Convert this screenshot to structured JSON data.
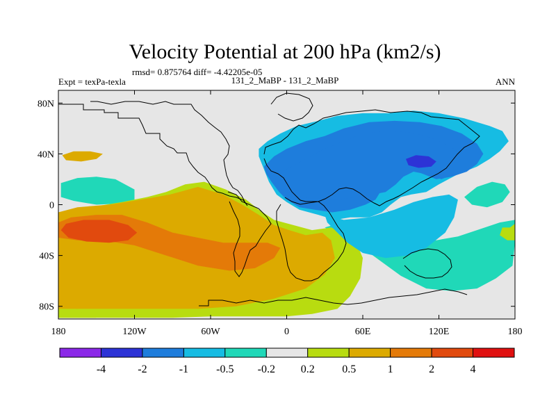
{
  "chart_data": {
    "type": "heatmap",
    "title": "Velocity Potential at 200 hPa (km2/s)",
    "stats_line": "rmsd= 0.875764  diff= -4.42205e-05",
    "left_label": "Expt = texPa-texla",
    "center_label": "131_2_MaBP - 131_2_MaBP",
    "right_label": "ANN",
    "x_axis": {
      "range": [
        -180,
        180
      ],
      "tick_values": [
        -180,
        -120,
        -60,
        0,
        60,
        120,
        180
      ],
      "tick_labels": [
        "180",
        "120W",
        "60W",
        "0",
        "60E",
        "120E",
        "180"
      ]
    },
    "y_axis": {
      "range": [
        -90,
        90
      ],
      "tick_values": [
        80,
        40,
        0,
        -40,
        -80
      ],
      "tick_labels": [
        "80N",
        "40N",
        "0",
        "40S",
        "80S"
      ]
    },
    "colorbar": {
      "labels": [
        "-4",
        "-2",
        "-1",
        "-0.5",
        "-0.2",
        "0.2",
        "0.5",
        "1",
        "2",
        "4"
      ],
      "colors": [
        "#8b28e8",
        "#2d33d6",
        "#1e7ddc",
        "#16bce3",
        "#20d8b8",
        "#e6e6e6",
        "#b8dc10",
        "#dcaa00",
        "#e47a08",
        "#e14a0e",
        "#e01010"
      ]
    },
    "background_color": "#e6e6e6",
    "features": [
      {
        "level": 5,
        "points": [
          [
            -178,
            84
          ],
          [
            -160,
            80
          ],
          [
            -130,
            81
          ],
          [
            -100,
            82
          ],
          [
            -70,
            84
          ],
          [
            -40,
            85
          ],
          [
            -10,
            86
          ],
          [
            20,
            86
          ],
          [
            60,
            87
          ],
          [
            100,
            87
          ],
          [
            140,
            86
          ],
          [
            178,
            86
          ],
          [
            180,
            75
          ],
          [
            168,
            70
          ],
          [
            150,
            70
          ],
          [
            130,
            74
          ],
          [
            110,
            78
          ],
          [
            90,
            79
          ],
          [
            60,
            76
          ],
          [
            40,
            76
          ],
          [
            30,
            73
          ],
          [
            20,
            66
          ],
          [
            10,
            58
          ],
          [
            2,
            52
          ],
          [
            -5,
            48
          ],
          [
            -15,
            44
          ],
          [
            -22,
            40
          ],
          [
            -30,
            42
          ],
          [
            -40,
            48
          ],
          [
            -55,
            58
          ],
          [
            -70,
            66
          ],
          [
            -90,
            70
          ],
          [
            -110,
            72
          ],
          [
            -130,
            74
          ],
          [
            -150,
            74
          ],
          [
            -170,
            76
          ],
          [
            -178,
            78
          ]
        ]
      },
      {
        "level": 7,
        "points": [
          [
            -177,
            39
          ],
          [
            -168,
            42
          ],
          [
            -155,
            42
          ],
          [
            -145,
            40
          ],
          [
            -150,
            36
          ],
          [
            -162,
            34
          ],
          [
            -174,
            35
          ]
        ]
      },
      {
        "level": 4,
        "points": [
          [
            -178,
            17
          ],
          [
            -165,
            21
          ],
          [
            -150,
            22
          ],
          [
            -135,
            20
          ],
          [
            -120,
            12
          ],
          [
            -120,
            4
          ],
          [
            -130,
            1
          ],
          [
            -150,
            0
          ],
          [
            -168,
            3
          ],
          [
            -178,
            6
          ]
        ]
      },
      {
        "level": 4,
        "points": [
          [
            30,
            -18
          ],
          [
            50,
            -28
          ],
          [
            68,
            -40
          ],
          [
            90,
            -56
          ],
          [
            110,
            -66
          ],
          [
            130,
            -68
          ],
          [
            150,
            -66
          ],
          [
            165,
            -58
          ],
          [
            178,
            -48
          ],
          [
            180,
            -30
          ],
          [
            180,
            -12
          ],
          [
            168,
            -14
          ],
          [
            150,
            -20
          ],
          [
            135,
            -25
          ],
          [
            118,
            -28
          ],
          [
            100,
            -26
          ],
          [
            80,
            -24
          ],
          [
            60,
            -20
          ],
          [
            40,
            -15
          ]
        ]
      },
      {
        "level": 6,
        "points": [
          [
            170,
            -18
          ],
          [
            176,
            -18
          ],
          [
            180,
            -15
          ],
          [
            180,
            -28
          ],
          [
            174,
            -28
          ],
          [
            168,
            -24
          ]
        ]
      },
      {
        "level": 6,
        "points": [
          [
            -180,
            -6
          ],
          [
            -155,
            -2
          ],
          [
            -130,
            2
          ],
          [
            -110,
            6
          ],
          [
            -95,
            10
          ],
          [
            -80,
            16
          ],
          [
            -65,
            18
          ],
          [
            -48,
            12
          ],
          [
            -32,
            4
          ],
          [
            -22,
            -4
          ],
          [
            -10,
            -12
          ],
          [
            5,
            -16
          ],
          [
            20,
            -20
          ],
          [
            35,
            -18
          ],
          [
            45,
            -22
          ],
          [
            55,
            -30
          ],
          [
            60,
            -42
          ],
          [
            58,
            -58
          ],
          [
            50,
            -72
          ],
          [
            40,
            -82
          ],
          [
            20,
            -86
          ],
          [
            0,
            -88
          ],
          [
            -30,
            -88
          ],
          [
            -60,
            -88
          ],
          [
            -90,
            -89
          ],
          [
            -120,
            -89
          ],
          [
            -150,
            -89
          ],
          [
            -180,
            -89
          ]
        ]
      },
      {
        "level": 6,
        "points": [
          [
            -180,
            -70
          ],
          [
            -170,
            -78
          ],
          [
            -160,
            -86
          ],
          [
            -150,
            -89
          ],
          [
            -180,
            -89
          ]
        ]
      },
      {
        "level": 7,
        "points": [
          [
            -180,
            -6
          ],
          [
            -165,
            -2
          ],
          [
            -140,
            0
          ],
          [
            -115,
            4
          ],
          [
            -92,
            8
          ],
          [
            -70,
            14
          ],
          [
            -50,
            8
          ],
          [
            -35,
            0
          ],
          [
            -22,
            -8
          ],
          [
            -10,
            -16
          ],
          [
            2,
            -20
          ],
          [
            15,
            -24
          ],
          [
            28,
            -22
          ],
          [
            35,
            -28
          ],
          [
            38,
            -42
          ],
          [
            30,
            -55
          ],
          [
            15,
            -66
          ],
          [
            -10,
            -74
          ],
          [
            -40,
            -80
          ],
          [
            -70,
            -82
          ],
          [
            -100,
            -82
          ],
          [
            -130,
            -82
          ],
          [
            -155,
            -82
          ],
          [
            -180,
            -82
          ]
        ]
      },
      {
        "level": 8,
        "points": [
          [
            -180,
            -14
          ],
          [
            -170,
            -10
          ],
          [
            -150,
            -8
          ],
          [
            -130,
            -8
          ],
          [
            -110,
            -14
          ],
          [
            -90,
            -22
          ],
          [
            -70,
            -26
          ],
          [
            -50,
            -30
          ],
          [
            -30,
            -30
          ],
          [
            -15,
            -30
          ],
          [
            -5,
            -34
          ],
          [
            -10,
            -42
          ],
          [
            -25,
            -50
          ],
          [
            -45,
            -52
          ],
          [
            -70,
            -48
          ],
          [
            -95,
            -40
          ],
          [
            -120,
            -32
          ],
          [
            -145,
            -28
          ],
          [
            -165,
            -28
          ],
          [
            -180,
            -26
          ]
        ]
      },
      {
        "level": 9,
        "points": [
          [
            -174,
            -15
          ],
          [
            -160,
            -12
          ],
          [
            -140,
            -12
          ],
          [
            -125,
            -16
          ],
          [
            -118,
            -22
          ],
          [
            -125,
            -28
          ],
          [
            -140,
            -30
          ],
          [
            -158,
            -29
          ],
          [
            -172,
            -26
          ],
          [
            -178,
            -20
          ]
        ]
      },
      {
        "level": 3,
        "points": [
          [
            -22,
            44
          ],
          [
            -15,
            50
          ],
          [
            -5,
            56
          ],
          [
            8,
            62
          ],
          [
            25,
            66
          ],
          [
            40,
            70
          ],
          [
            60,
            72
          ],
          [
            80,
            72
          ],
          [
            100,
            74
          ],
          [
            120,
            72
          ],
          [
            140,
            68
          ],
          [
            160,
            62
          ],
          [
            170,
            58
          ],
          [
            175,
            50
          ],
          [
            168,
            42
          ],
          [
            160,
            36
          ],
          [
            150,
            30
          ],
          [
            135,
            24
          ],
          [
            120,
            16
          ],
          [
            110,
            10
          ],
          [
            98,
            8
          ],
          [
            90,
            6
          ],
          [
            82,
            0
          ],
          [
            75,
            -6
          ],
          [
            65,
            -10
          ],
          [
            50,
            -10
          ],
          [
            38,
            -12
          ],
          [
            25,
            -8
          ],
          [
            10,
            -4
          ],
          [
            0,
            2
          ],
          [
            -8,
            8
          ],
          [
            -14,
            18
          ],
          [
            -18,
            28
          ],
          [
            -22,
            38
          ]
        ]
      },
      {
        "level": 2,
        "points": [
          [
            -18,
            30
          ],
          [
            -10,
            38
          ],
          [
            0,
            44
          ],
          [
            15,
            50
          ],
          [
            30,
            54
          ],
          [
            45,
            60
          ],
          [
            65,
            65
          ],
          [
            85,
            66
          ],
          [
            105,
            65
          ],
          [
            122,
            62
          ],
          [
            138,
            56
          ],
          [
            150,
            48
          ],
          [
            155,
            40
          ],
          [
            150,
            32
          ],
          [
            142,
            26
          ],
          [
            130,
            22
          ],
          [
            118,
            20
          ],
          [
            108,
            24
          ],
          [
            98,
            28
          ],
          [
            88,
            26
          ],
          [
            80,
            20
          ],
          [
            75,
            12
          ],
          [
            70,
            4
          ],
          [
            62,
            0
          ],
          [
            50,
            -4
          ],
          [
            36,
            -6
          ],
          [
            22,
            -4
          ],
          [
            10,
            -2
          ],
          [
            0,
            4
          ],
          [
            -6,
            10
          ],
          [
            -12,
            18
          ],
          [
            -16,
            24
          ]
        ]
      },
      {
        "level": 3,
        "points": [
          [
            30,
            -8
          ],
          [
            45,
            -12
          ],
          [
            65,
            -10
          ],
          [
            85,
            -4
          ],
          [
            100,
            2
          ],
          [
            115,
            6
          ],
          [
            128,
            8
          ],
          [
            135,
            4
          ],
          [
            132,
            -10
          ],
          [
            125,
            -22
          ],
          [
            110,
            -34
          ],
          [
            95,
            -40
          ],
          [
            78,
            -42
          ],
          [
            60,
            -38
          ],
          [
            48,
            -30
          ],
          [
            40,
            -22
          ],
          [
            32,
            -14
          ]
        ]
      },
      {
        "level": 2,
        "points": [
          [
            -10,
            20
          ],
          [
            0,
            28
          ],
          [
            15,
            36
          ],
          [
            30,
            44
          ],
          [
            45,
            50
          ],
          [
            60,
            56
          ],
          [
            78,
            58
          ],
          [
            95,
            57
          ],
          [
            110,
            54
          ],
          [
            125,
            48
          ],
          [
            135,
            42
          ],
          [
            138,
            32
          ],
          [
            132,
            24
          ],
          [
            122,
            20
          ],
          [
            110,
            24
          ],
          [
            100,
            26
          ],
          [
            92,
            22
          ],
          [
            86,
            16
          ],
          [
            78,
            10
          ],
          [
            68,
            8
          ],
          [
            55,
            6
          ],
          [
            40,
            4
          ],
          [
            25,
            4
          ],
          [
            12,
            6
          ],
          [
            0,
            10
          ],
          [
            -8,
            14
          ]
        ]
      },
      {
        "level": 1,
        "points": [
          [
            94,
            36
          ],
          [
            102,
            39
          ],
          [
            112,
            38
          ],
          [
            118,
            34
          ],
          [
            114,
            30
          ],
          [
            104,
            29
          ],
          [
            96,
            31
          ]
        ]
      },
      {
        "level": 4,
        "points": [
          [
            140,
            6
          ],
          [
            150,
            14
          ],
          [
            162,
            18
          ],
          [
            172,
            16
          ],
          [
            176,
            10
          ],
          [
            170,
            2
          ],
          [
            158,
            -2
          ],
          [
            146,
            0
          ]
        ]
      }
    ],
    "ticks_inward": true
  }
}
